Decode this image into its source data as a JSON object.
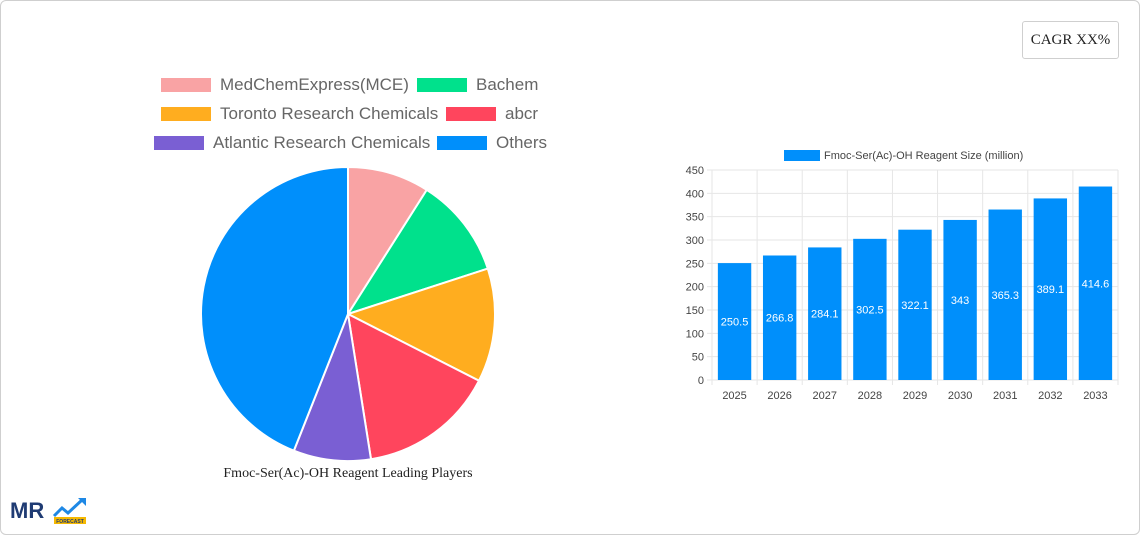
{
  "cagr_label": "CAGR XX%",
  "colors": {
    "pie": [
      "#f9a3a4",
      "#00e18c",
      "#ffad1f",
      "#ff455d",
      "#7a5fd3",
      "#008ffb"
    ],
    "bar": "#008ffb",
    "grid": "#e6e6e6",
    "axis_text": "#444444"
  },
  "chart_data": [
    {
      "type": "pie",
      "title": "Fmoc-Ser(Ac)-OH Reagent Leading Players",
      "legend_position": "top",
      "categories": [
        "MedChemExpress(MCE)",
        "Bachem",
        "Toronto Research Chemicals",
        "abcr",
        "Atlantic Research Chemicals",
        "Others"
      ],
      "values": [
        9,
        11,
        12.5,
        15,
        8.5,
        44
      ]
    },
    {
      "type": "bar",
      "title": "",
      "series": [
        {
          "name": "Fmoc-Ser(Ac)-OH Reagent Size (million)",
          "values": [
            250.5,
            266.8,
            284.1,
            302.5,
            322.1,
            343,
            365.3,
            389.1,
            414.6
          ]
        }
      ],
      "categories": [
        "2025",
        "2026",
        "2027",
        "2028",
        "2029",
        "2030",
        "2031",
        "2032",
        "2033"
      ],
      "ylim": [
        0,
        450
      ],
      "yticks": [
        0,
        50,
        100,
        150,
        200,
        250,
        300,
        350,
        400,
        450
      ],
      "grid": true,
      "legend_position": "top",
      "xlabel": "",
      "ylabel": ""
    }
  ],
  "logo": {
    "text": "MR",
    "subtext": "FORECAST"
  }
}
